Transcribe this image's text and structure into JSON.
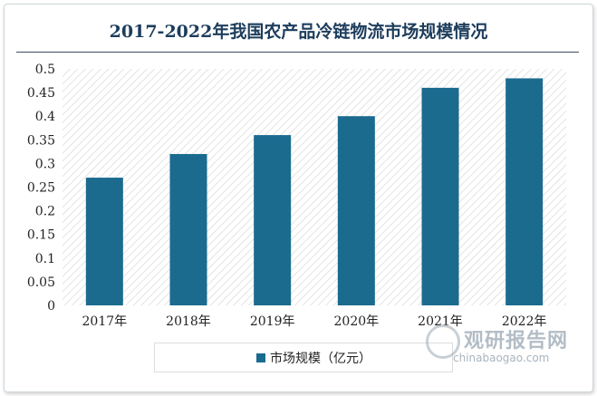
{
  "chart_data": {
    "type": "bar",
    "title": "2017-2022年我国农产品冷链物流市场规模情况",
    "categories": [
      "2017年",
      "2018年",
      "2019年",
      "2020年",
      "2021年",
      "2022年"
    ],
    "series": [
      {
        "name": "市场规模（亿元）",
        "values": [
          0.27,
          0.32,
          0.36,
          0.4,
          0.46,
          0.48
        ]
      }
    ],
    "y_ticks": [
      "0",
      "0.05",
      "0.1",
      "0.15",
      "0.2",
      "0.25",
      "0.3",
      "0.35",
      "0.4",
      "0.45",
      "0.5"
    ],
    "ylim": [
      0,
      0.5
    ],
    "grid": false,
    "legend_position": "bottom",
    "bar_color": "#1b6b8f"
  },
  "watermark": {
    "name": "观研报告网",
    "url": "chinabaogao.com"
  }
}
